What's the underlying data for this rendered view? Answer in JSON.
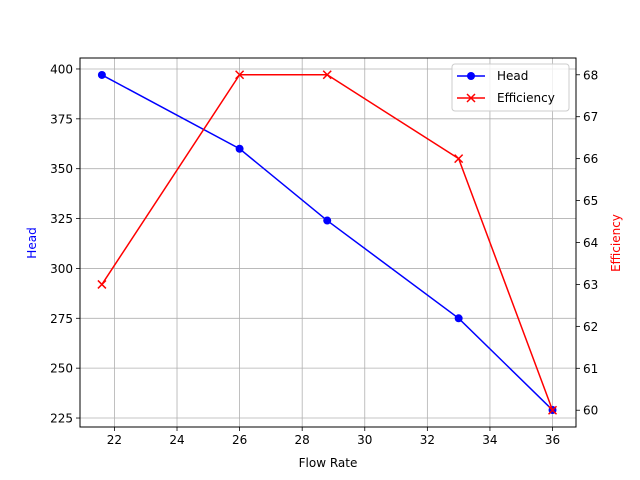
{
  "chart_data": {
    "type": "line",
    "title": "",
    "xlabel": "Flow Rate",
    "ylabel": "Head",
    "y2label": "Efficiency",
    "x": [
      21.6,
      26.0,
      28.8,
      33.0,
      36.0
    ],
    "xlim": [
      20.9,
      36.75
    ],
    "ylim": [
      220.5,
      405.5
    ],
    "y2lim": [
      59.6,
      68.4
    ],
    "xticks": [
      22,
      24,
      26,
      28,
      30,
      32,
      34,
      36
    ],
    "yticks": [
      225,
      250,
      275,
      300,
      325,
      350,
      375,
      400
    ],
    "y2ticks": [
      60,
      61,
      62,
      63,
      64,
      65,
      66,
      67,
      68
    ],
    "grid": true,
    "legend_position": "upper right",
    "series": [
      {
        "name": "Head",
        "axis": "left",
        "color": "#0000ff",
        "marker": "circle",
        "values": [
          397,
          360,
          324,
          275,
          229
        ]
      },
      {
        "name": "Efficiency",
        "axis": "right",
        "color": "#ff0000",
        "marker": "x",
        "values": [
          63,
          68,
          68,
          66,
          60
        ]
      }
    ]
  },
  "legend": {
    "items": [
      {
        "label": "Head",
        "color": "#0000ff"
      },
      {
        "label": "Efficiency",
        "color": "#ff0000"
      }
    ]
  }
}
